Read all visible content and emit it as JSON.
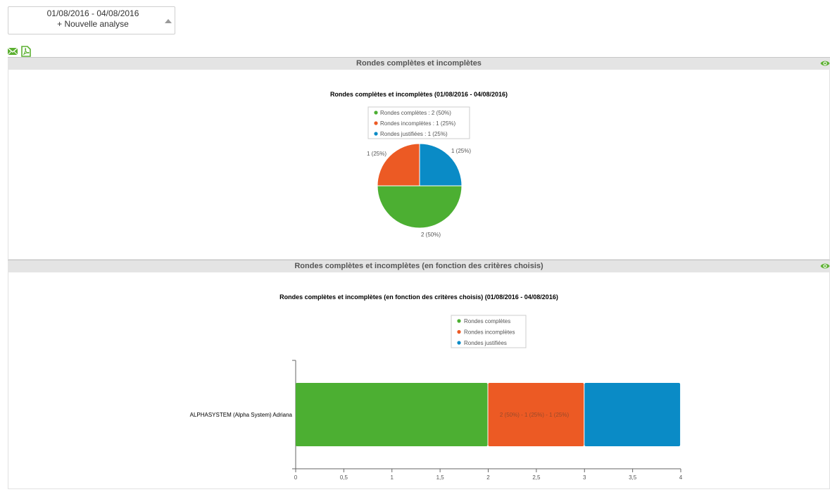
{
  "filter": {
    "date_range": "01/08/2016 - 04/08/2016",
    "new_analysis": "+ Nouvelle analyse"
  },
  "icons": {
    "mail": "mail-icon",
    "pdf": "pdf-icon",
    "eye": "eye-icon"
  },
  "colors": {
    "completes": "#4caf32",
    "incompletes": "#ec5a24",
    "justifiees": "#0a8bc6",
    "accent": "#5cb031"
  },
  "panel1": {
    "header": "Rondes complètes et incomplètes"
  },
  "panel2": {
    "header": "Rondes complètes et incomplètes (en fonction des critères choisis)"
  },
  "chart_data": [
    {
      "type": "pie",
      "title": "Rondes complètes et incomplètes (01/08/2016 - 04/08/2016)",
      "legend": [
        "Rondes complètes : 2 (50%)",
        "Rondes incomplètes : 1 (25%)",
        "Rondes justifiées : 1 (25%)"
      ],
      "legend_position": "top",
      "slices": [
        {
          "name": "Rondes complètes",
          "value": 2,
          "label": "2 (50%)",
          "color": "#4caf32"
        },
        {
          "name": "Rondes incomplètes",
          "value": 1,
          "label": "1 (25%)",
          "color": "#ec5a24"
        },
        {
          "name": "Rondes justifiées",
          "value": 1,
          "label": "1 (25%)",
          "color": "#0a8bc6"
        }
      ]
    },
    {
      "type": "bar",
      "orientation": "horizontal",
      "stacked": true,
      "title": "Rondes complètes et incomplètes (en fonction des critères choisis) (01/08/2016 - 04/08/2016)",
      "categories": [
        "ALPHASYSTEM (Alpha System) Adriana"
      ],
      "series": [
        {
          "name": "Rondes complètes",
          "values": [
            2
          ],
          "color": "#4caf32"
        },
        {
          "name": "Rondes incomplètes",
          "values": [
            1
          ],
          "color": "#ec5a24"
        },
        {
          "name": "Rondes justifiées",
          "values": [
            1
          ],
          "color": "#0a8bc6"
        }
      ],
      "bar_label": "2 (50%) - 1 (25%) - 1 (25%)",
      "xlim": [
        0,
        4
      ],
      "xticks": [
        "0",
        "0,5",
        "1",
        "1,5",
        "2",
        "2,5",
        "3",
        "3,5",
        "4"
      ],
      "legend_position": "top",
      "grid": false
    }
  ]
}
